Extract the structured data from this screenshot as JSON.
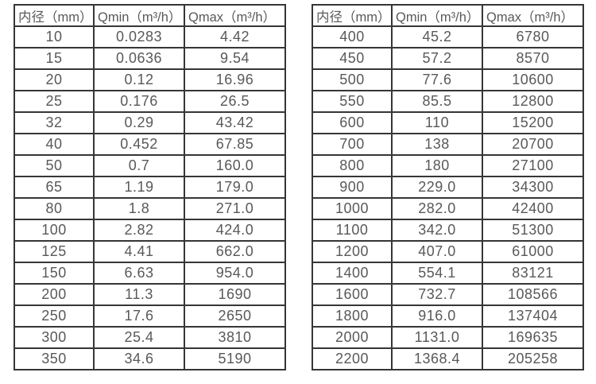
{
  "page": {
    "background_color": "#ffffff",
    "border_color": "#363636",
    "text_color": "#595959"
  },
  "chart_data": [
    {
      "type": "table",
      "name": "flow-range-small-diameters",
      "headers": [
        "内径（mm）",
        "Qmin（m³/h）",
        "Qmax（m³/h）"
      ],
      "rows": [
        [
          "10",
          "0.0283",
          "4.42"
        ],
        [
          "15",
          "0.0636",
          "9.54"
        ],
        [
          "20",
          "0.12",
          "16.96"
        ],
        [
          "25",
          "0.176",
          "26.5"
        ],
        [
          "32",
          "0.29",
          "43.42"
        ],
        [
          "40",
          "0.452",
          "67.85"
        ],
        [
          "50",
          "0.7",
          "160.0"
        ],
        [
          "65",
          "1.19",
          "179.0"
        ],
        [
          "80",
          "1.8",
          "271.0"
        ],
        [
          "100",
          "2.82",
          "424.0"
        ],
        [
          "125",
          "4.41",
          "662.0"
        ],
        [
          "150",
          "6.63",
          "954.0"
        ],
        [
          "200",
          "11.3",
          "1690"
        ],
        [
          "250",
          "17.6",
          "2650"
        ],
        [
          "300",
          "25.4",
          "3810"
        ],
        [
          "350",
          "34.6",
          "5190"
        ]
      ]
    },
    {
      "type": "table",
      "name": "flow-range-large-diameters",
      "headers": [
        "内径（mm）",
        "Qmin（m³/h）",
        "Qmax（m³/h）"
      ],
      "rows": [
        [
          "400",
          "45.2",
          "6780"
        ],
        [
          "450",
          "57.2",
          "8570"
        ],
        [
          "500",
          "77.6",
          "10600"
        ],
        [
          "550",
          "85.5",
          "12800"
        ],
        [
          "600",
          "110",
          "15200"
        ],
        [
          "700",
          "138",
          "20700"
        ],
        [
          "800",
          "180",
          "27100"
        ],
        [
          "900",
          "229.0",
          "34300"
        ],
        [
          "1000",
          "282.0",
          "42400"
        ],
        [
          "1100",
          "342.0",
          "51300"
        ],
        [
          "1200",
          "407.0",
          "61000"
        ],
        [
          "1400",
          "554.1",
          "83121"
        ],
        [
          "1600",
          "732.7",
          "108566"
        ],
        [
          "1800",
          "916.0",
          "137404"
        ],
        [
          "2000",
          "1131.0",
          "169635"
        ],
        [
          "2200",
          "1368.4",
          "205258"
        ]
      ]
    }
  ]
}
